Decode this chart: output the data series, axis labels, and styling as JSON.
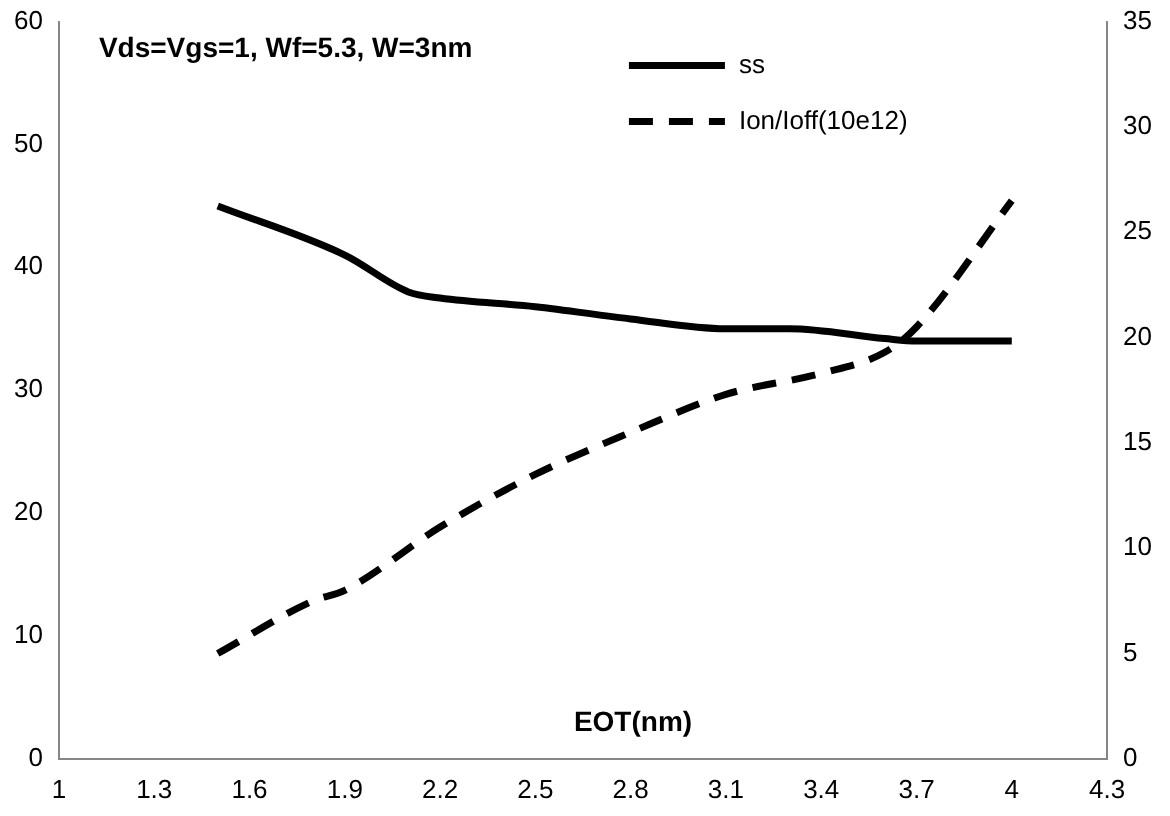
{
  "chart_data": {
    "type": "line",
    "annotations": [
      "Vds=Vgs=1, Wf=5.3, W=3nm"
    ],
    "xlabel": "EOT(nm)",
    "x": [
      1.5,
      1.9,
      2.1,
      2.2,
      2.5,
      2.8,
      3.1,
      3.3,
      3.6,
      3.7,
      4.0
    ],
    "series": [
      {
        "name": "ss",
        "color": "#000000",
        "line_style": "solid",
        "values": [
          45,
          41,
          38,
          37.5,
          36.8,
          35.8,
          35,
          35,
          34.2,
          34,
          34
        ]
      },
      {
        "name": "Ion/Ioff(10e12)",
        "color": "#000000",
        "line_style": "dashed",
        "axis": "y2",
        "x": [
          1.5,
          1.8,
          1.9,
          2.2,
          2.5,
          2.8,
          3.1,
          3.4,
          3.6,
          3.7,
          4.0
        ],
        "values": [
          5,
          7.5,
          8,
          11,
          13.5,
          15.5,
          17.3,
          18.3,
          19.3,
          20.5,
          26.5
        ]
      }
    ],
    "xlim": [
      1,
      4.3
    ],
    "xticks": [
      1,
      1.3,
      1.6,
      1.9,
      2.2,
      2.5,
      2.8,
      3.1,
      3.4,
      3.7,
      4,
      4.3
    ],
    "ylim": [
      0,
      60
    ],
    "yticks": [
      0,
      10,
      20,
      30,
      40,
      50,
      60
    ],
    "y2lim": [
      0,
      35
    ],
    "y2ticks": [
      0,
      5,
      10,
      15,
      20,
      25,
      30,
      35
    ],
    "grid": false,
    "legend": "top right",
    "marker": "none"
  }
}
